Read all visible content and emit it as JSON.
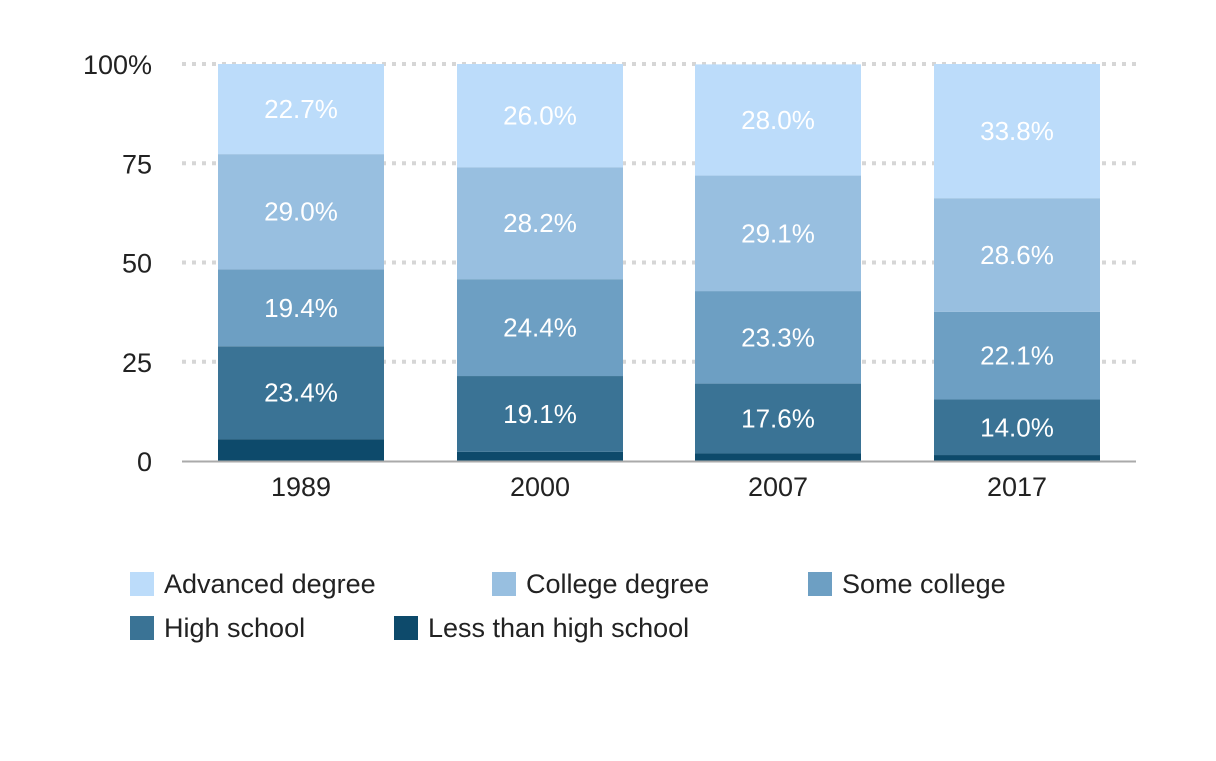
{
  "chart_data": {
    "type": "bar",
    "stacked": true,
    "categories": [
      "1989",
      "2000",
      "2007",
      "2017"
    ],
    "ylim": [
      0,
      100
    ],
    "yticks": [
      {
        "value": 0,
        "label": "0"
      },
      {
        "value": 25,
        "label": "25"
      },
      {
        "value": 50,
        "label": "50"
      },
      {
        "value": 75,
        "label": "75"
      },
      {
        "value": 100,
        "label": "100%"
      }
    ],
    "grid": "horizontal dotted",
    "legend_position": "bottom",
    "series": [
      {
        "name": "Less than high school",
        "color": "#0d4a6b",
        "values": [
          5.5,
          2.3,
          1.9,
          1.5
        ],
        "labels": [
          "",
          "",
          "",
          ""
        ]
      },
      {
        "name": "High school",
        "color": "#3a7395",
        "values": [
          23.4,
          19.1,
          17.6,
          14.0
        ],
        "labels": [
          "23.4%",
          "19.1%",
          "17.6%",
          "14.0%"
        ]
      },
      {
        "name": "Some college",
        "color": "#6d9fc3",
        "values": [
          19.4,
          24.4,
          23.3,
          22.1
        ],
        "labels": [
          "19.4%",
          "24.4%",
          "23.3%",
          "22.1%"
        ]
      },
      {
        "name": "College degree",
        "color": "#98bfe0",
        "values": [
          29.0,
          28.2,
          29.1,
          28.6
        ],
        "labels": [
          "29.0%",
          "28.2%",
          "29.1%",
          "28.6%"
        ]
      },
      {
        "name": "Advanced degree",
        "color": "#bcdcfa",
        "values": [
          22.7,
          26.0,
          28.0,
          33.8
        ],
        "labels": [
          "22.7%",
          "26.0%",
          "28.0%",
          "33.8%"
        ]
      }
    ]
  },
  "legend": {
    "items": [
      {
        "label": "Advanced degree",
        "color": "#bcdcfa"
      },
      {
        "label": "College degree",
        "color": "#98bfe0"
      },
      {
        "label": "Some college",
        "color": "#6d9fc3"
      },
      {
        "label": "High school",
        "color": "#3a7395"
      },
      {
        "label": "Less than high school",
        "color": "#0d4a6b"
      }
    ]
  }
}
